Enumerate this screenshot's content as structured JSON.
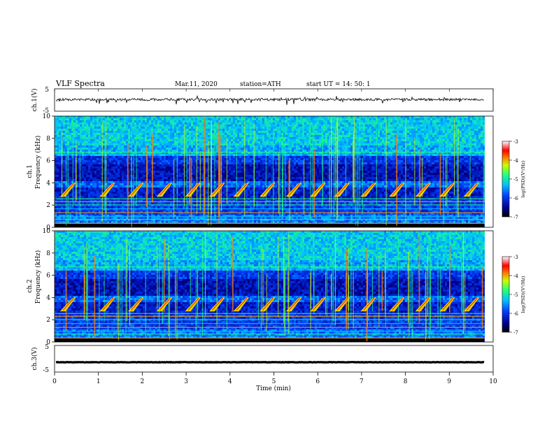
{
  "header": {
    "title": "VLF Spectra",
    "date": "Mar.11, 2020",
    "station": "station=ATH",
    "start": "start UT = 14: 50: 1"
  },
  "chart_data": [
    {
      "type": "line",
      "name": "ch1-waveform",
      "ylabel": "ch.1(V)",
      "ylim": [
        -5,
        5
      ],
      "yticks": [
        "5",
        "-5"
      ],
      "xlim": [
        0,
        10
      ],
      "baseline": 0.2
    },
    {
      "type": "heatmap",
      "name": "ch1-spectrogram",
      "ylabel_top": "ch.1",
      "ylabel": "Frequency (kHz)",
      "ylim": [
        0,
        10
      ],
      "yticks": [
        0,
        2,
        4,
        6,
        8,
        10
      ],
      "xlim": [
        0,
        9.8
      ],
      "colorbar": {
        "label": "log(PSD)(V²/Hz)",
        "ticks": [
          -3,
          -4,
          -5,
          -6,
          -7
        ]
      },
      "chorus_times_min": [
        0.15,
        1.05,
        1.7,
        2.35,
        3.0,
        3.55,
        4.1,
        4.7,
        5.3,
        5.85,
        6.4,
        7.0,
        7.65,
        8.25,
        8.8,
        9.35
      ],
      "chorus_band_khz": [
        2.8,
        4.0
      ]
    },
    {
      "type": "heatmap",
      "name": "ch2-spectrogram",
      "ylabel_top": "ch.2",
      "ylabel": "Frequency (kHz)",
      "ylim": [
        0,
        10
      ],
      "yticks": [
        0,
        2,
        4,
        6,
        8,
        10
      ],
      "xlim": [
        0,
        9.8
      ],
      "colorbar": {
        "label": "log(PSD)(V²/Hz)",
        "ticks": [
          -3,
          -4,
          -5,
          -6,
          -7
        ]
      },
      "chorus_times_min": [
        0.15,
        1.05,
        1.7,
        2.35,
        3.0,
        3.55,
        4.1,
        4.7,
        5.3,
        5.85,
        6.4,
        7.0,
        7.65,
        8.25,
        8.8,
        9.35
      ],
      "chorus_band_khz": [
        2.8,
        4.0
      ]
    },
    {
      "type": "line",
      "name": "ch3-waveform",
      "ylabel": "ch.3(V)",
      "ylim": [
        -5,
        5
      ],
      "yticks": [
        "5",
        "-5"
      ],
      "xlim": [
        0,
        9.8
      ],
      "baseline": -1.3
    }
  ],
  "xaxis": {
    "label": "Time (min)",
    "ticks": [
      0,
      1,
      2,
      3,
      4,
      5,
      6,
      7,
      8,
      9,
      10
    ]
  }
}
